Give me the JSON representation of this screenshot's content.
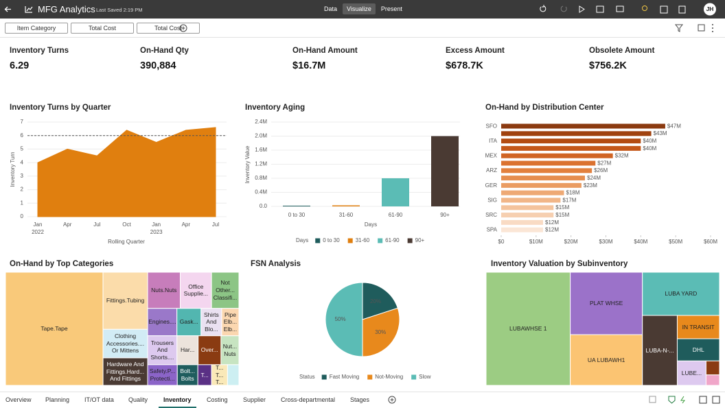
{
  "header": {
    "title": "MFG Analytics",
    "last_saved": "Last Saved 2:19 PM",
    "modes": [
      "Data",
      "Visualize",
      "Present"
    ],
    "active_mode": 1,
    "user": "JH"
  },
  "filters": [
    "Item Category",
    "Total Cost",
    "Total Cost"
  ],
  "kpis": [
    {
      "label": "Inventory Turns",
      "value": "6.29"
    },
    {
      "label": "On-Hand Qty",
      "value": "390,884"
    },
    {
      "label": "On-Hand Amount",
      "value": "$16.7M"
    },
    {
      "label": "Excess Amount",
      "value": "$678.7K"
    },
    {
      "label": "Obsolete Amount",
      "value": "$756.2K"
    }
  ],
  "chart_data": [
    {
      "type": "area",
      "title": "Inventory Turns by Quarter",
      "x_label": "Rolling Quarter",
      "y_label": "Inventory Turn",
      "categories": [
        "Jan",
        "Apr",
        "Jul",
        "Oct",
        "Jan",
        "Apr",
        "Jul"
      ],
      "category_years": [
        "2022",
        null,
        null,
        null,
        "2023",
        null,
        null
      ],
      "values": [
        4.0,
        5.0,
        4.5,
        6.4,
        5.5,
        6.4,
        6.6
      ],
      "color": "#e07f0f",
      "ylim": [
        0,
        7
      ],
      "yticks": [
        0,
        1,
        2,
        3,
        4,
        5,
        6,
        7
      ],
      "reference_line": 6,
      "grid": true
    },
    {
      "type": "bar",
      "title": "Inventory Aging",
      "x_label": "Days",
      "y_label": "Inventory Value",
      "categories": [
        "0 to 30",
        "31-60",
        "61-90",
        "90+"
      ],
      "values": [
        0.02,
        0.03,
        0.8,
        2.0
      ],
      "colors": [
        "#1f5c5c",
        "#e07f0f",
        "#5bbcb5",
        "#4a3a33"
      ],
      "ylim": [
        0,
        2.4
      ],
      "yticks": [
        {
          "value": 0,
          "label": "0.0"
        },
        {
          "value": 0.4,
          "label": "0.4M"
        },
        {
          "value": 0.8,
          "label": "0.8M"
        },
        {
          "value": 1.2,
          "label": "1.2M"
        },
        {
          "value": 1.6,
          "label": "1.6M"
        },
        {
          "value": 2.0,
          "label": "2.0M"
        },
        {
          "value": 2.4,
          "label": "2.4M"
        }
      ],
      "legend_title": "Days",
      "grid": true
    },
    {
      "type": "hbar",
      "title": "On-Hand by Distribution Center",
      "categories": [
        "SFO",
        null,
        "ITA",
        null,
        "MEX",
        null,
        "ARZ",
        null,
        "GER",
        null,
        "SIG",
        null,
        "SRC",
        null,
        "SPA"
      ],
      "values": [
        47,
        43,
        40,
        40,
        32,
        27,
        26,
        24,
        23,
        18,
        17,
        15,
        15,
        12,
        12
      ],
      "value_labels": [
        "$47M",
        "$43M",
        "$40M",
        "$40M",
        "$32M",
        "$27M",
        "$26M",
        "$24M",
        "$23M",
        "$18M",
        "$17M",
        "$15M",
        "$15M",
        "$12M",
        "$12M"
      ],
      "colors": [
        "#8b3a10",
        "#a0420f",
        "#b34c12",
        "#c4581a",
        "#d06424",
        "#db7230",
        "#e2803d",
        "#e68e4f",
        "#ea9c62",
        "#eea975",
        "#f1b688",
        "#f4c39c",
        "#f6cfb0",
        "#f9dbc4",
        "#fbe6d6"
      ],
      "xlim": [
        0,
        60
      ],
      "xticks": [
        {
          "value": 0,
          "label": "$0"
        },
        {
          "value": 10,
          "label": "$10M"
        },
        {
          "value": 20,
          "label": "$20M"
        },
        {
          "value": 30,
          "label": "$30M"
        },
        {
          "value": 40,
          "label": "$40M"
        },
        {
          "value": 50,
          "label": "$50M"
        },
        {
          "value": 60,
          "label": "$60M"
        }
      ],
      "grid": false
    },
    {
      "type": "treemap",
      "title": "On-Hand by Top Categories",
      "labels": [
        "Tape.Tape",
        "Fittings.Tubing",
        "Clothing Accessories.... Or Mittens",
        "Hardware And Fittings.Hard... And Fittings",
        "Nuts.Nuts",
        "Office Supplie...",
        "Not Other... Classifi...",
        "Engines....",
        "Gask...",
        "Shirts And Blo...",
        "Pipe Elb... Elb...",
        "Trousers And Shorts....",
        "Har...",
        "Over...",
        "Nut... Nuts",
        "Safety.P... Protecti...",
        "Bolt... Bolts",
        "T...",
        "T... T... T...",
        null
      ],
      "values": [
        234,
        54,
        27,
        26,
        25,
        24,
        21,
        17,
        14,
        12,
        10,
        18,
        13,
        14,
        11,
        13,
        9,
        6,
        7,
        5
      ],
      "colors": [
        "#f9c97a",
        "#fbdcaa",
        "#d2ecf5",
        "#4a3a33",
        "#c77dbb",
        "#f4d6ef",
        "#8cc585",
        "#9a78c9",
        "#52b6b0",
        "#eae1f1",
        "#fbd7b0",
        "#ddc9ef",
        "#ece3dc",
        "#8a3b12",
        "#c7e4c1",
        "#8b64c8",
        "#1f5d5e",
        "#5a3085",
        "#fae9b8",
        "#cdeff2"
      ]
    },
    {
      "type": "pie",
      "title": "FSN Analysis",
      "categories": [
        "Fast Moving",
        "Not-Moving",
        "Slow"
      ],
      "values": [
        20,
        30,
        50
      ],
      "value_labels": [
        "20%",
        "30%",
        "50%"
      ],
      "colors": [
        "#1f5c5c",
        "#e8891c",
        "#5bbcb5"
      ],
      "legend_title": "Status"
    },
    {
      "type": "treemap",
      "title": "Inventory Valuation by Subinventory",
      "labels": [
        "LUBAWHSE 1",
        "PLAT WHSE",
        "UA LUBAWH1",
        "LUBA YARD",
        "LUBA-N-...",
        "IN TRANSIT",
        "DHL",
        "LUBE...",
        null,
        null
      ],
      "values": [
        203,
        96,
        78,
        71,
        52,
        21,
        20,
        15,
        4,
        3
      ],
      "colors": [
        "#9ccc83",
        "#9b72c9",
        "#fbc472",
        "#5bbcb5",
        "#4a3a33",
        "#e8891c",
        "#1f5c5c",
        "#ddc9ef",
        "#8a3b12",
        "#f0a6c9"
      ]
    }
  ],
  "tabs": {
    "items": [
      "Overview",
      "Planning",
      "IT/OT data",
      "Quality",
      "Inventory",
      "Costing",
      "Supplier",
      "Cross-departmental",
      "Stages"
    ],
    "active": 4
  }
}
